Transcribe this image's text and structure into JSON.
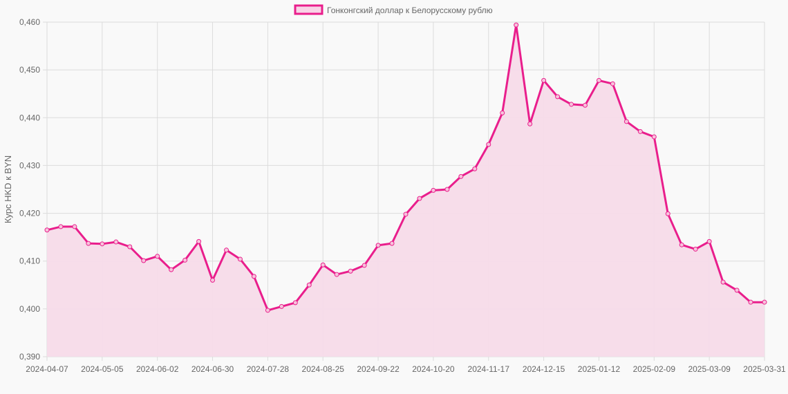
{
  "legend": {
    "label": "Гонконгский доллар к Белорусскому рублю",
    "swatch_fill": "#f8d3e6",
    "swatch_stroke": "#e91e8c"
  },
  "colors": {
    "line": "#e91e8c",
    "fill": "#f7dbe9",
    "grid": "#dcdcdc",
    "background": "#f9f9f9"
  },
  "chart_data": {
    "type": "line",
    "title": "",
    "legend": [
      "Гонконгский доллар к Белорусскому рублю"
    ],
    "legend_position": "top",
    "xlabel": "",
    "ylabel": "Курс HKD к BYN",
    "ylim": [
      0.39,
      0.46
    ],
    "y_ticks": [
      "0,460",
      "0,450",
      "0,440",
      "0,430",
      "0,420",
      "0,410",
      "0,400",
      "0,390"
    ],
    "x_ticks": [
      "2024-04-07",
      "2024-05-05",
      "2024-06-02",
      "2024-06-30",
      "2024-07-28",
      "2024-08-25",
      "2024-09-22",
      "2024-10-20",
      "2024-11-17",
      "2024-12-15",
      "2025-01-12",
      "2025-02-09",
      "2025-03-09",
      "2025-03-31"
    ],
    "grid": true,
    "filled": true,
    "series": [
      {
        "name": "Гонконгский доллар к Белорусскому рублю",
        "values": [
          0.4165,
          0.4172,
          0.4172,
          0.4137,
          0.4136,
          0.414,
          0.413,
          0.4101,
          0.411,
          0.4082,
          0.4102,
          0.4141,
          0.406,
          0.4123,
          0.4104,
          0.4068,
          0.3997,
          0.4005,
          0.4013,
          0.405,
          0.4092,
          0.4072,
          0.4079,
          0.4091,
          0.4133,
          0.4137,
          0.4198,
          0.4231,
          0.4248,
          0.425,
          0.4277,
          0.4293,
          0.4344,
          0.441,
          0.4594,
          0.4387,
          0.4478,
          0.4444,
          0.4428,
          0.4426,
          0.4478,
          0.4471,
          0.4392,
          0.4371,
          0.436,
          0.4199,
          0.4134,
          0.4125,
          0.4141,
          0.4056,
          0.4039,
          0.4014,
          0.4014
        ]
      }
    ]
  }
}
